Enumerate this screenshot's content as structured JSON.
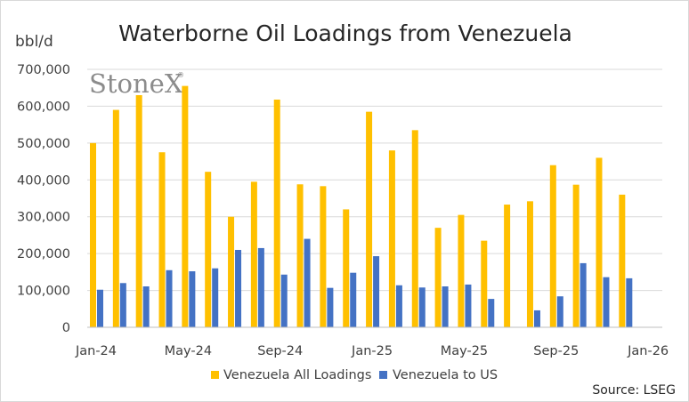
{
  "chart_data": {
    "type": "bar",
    "title": "Waterborne Oil Loadings from Venezuela",
    "ylabel": "bbl/d",
    "ylim": [
      0,
      700000
    ],
    "ytick_values": [
      0,
      100000,
      200000,
      300000,
      400000,
      500000,
      600000,
      700000
    ],
    "ytick_labels": [
      "0",
      "100,000",
      "200,000",
      "300,000",
      "400,000",
      "500,000",
      "600,000",
      "700,000"
    ],
    "x_tick_labels": [
      "Jan-24",
      "May-24",
      "Sep-24",
      "Jan-25",
      "May-25",
      "Sep-25",
      "Jan-26"
    ],
    "x_tick_months": [
      0,
      4,
      8,
      12,
      16,
      20,
      24
    ],
    "x_month_count": 24,
    "categories": [
      "Jan-24",
      "Feb-24",
      "Mar-24",
      "Apr-24",
      "May-24",
      "Jun-24",
      "Jul-24",
      "Aug-24",
      "Sep-24",
      "Oct-24",
      "Nov-24",
      "Dec-24",
      "Jan-25",
      "Feb-25",
      "Mar-25",
      "Apr-25",
      "May-25",
      "Jun-25",
      "Jul-25",
      "Aug-25",
      "Sep-25",
      "Oct-25",
      "Nov-25",
      "Dec-25"
    ],
    "series": [
      {
        "name": "Venezuela All Loadings",
        "color": "#FFC000",
        "values": [
          500000,
          590000,
          630000,
          475000,
          655000,
          422000,
          300000,
          395000,
          618000,
          388000,
          383000,
          320000,
          585000,
          480000,
          535000,
          270000,
          305000,
          235000,
          333000,
          342000,
          440000,
          387000,
          460000,
          360000
        ]
      },
      {
        "name": "Venezuela to US",
        "color": "#4472C4",
        "values": [
          102000,
          120000,
          111000,
          155000,
          152000,
          160000,
          210000,
          215000,
          143000,
          240000,
          107000,
          148000,
          193000,
          114000,
          108000,
          111000,
          116000,
          77000,
          0,
          46000,
          84000,
          174000,
          136000,
          133000
        ]
      }
    ],
    "legend_position": "bottom",
    "grid": true
  },
  "source_text": "Source: LSEG",
  "logo": {
    "text": "StoneX",
    "mark": "®",
    "color": "#8c8c8c"
  }
}
